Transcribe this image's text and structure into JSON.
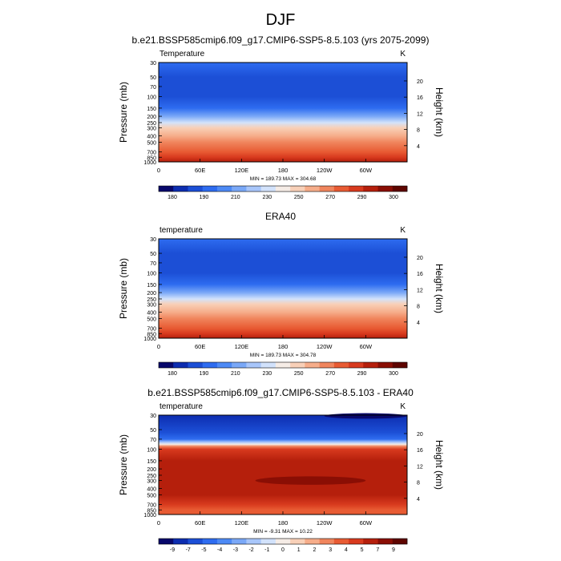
{
  "main_title": "DJF",
  "chart_data": [
    {
      "type": "heatmap",
      "title": "b.e21.BSSP585cmip6.f09_g17.CMIP6-SSP5-8.5.103 (yrs 2075-2099)",
      "field_label": "Temperature",
      "units": "K",
      "xlabel": "",
      "ylabel": "Pressure (mb)",
      "ylabel_right": "Height (km)",
      "x_ticks": [
        "0",
        "60E",
        "120E",
        "180",
        "120W",
        "60W"
      ],
      "x_range": [
        0,
        360
      ],
      "y_ticks": [
        "30",
        "50",
        "70",
        "100",
        "150",
        "200",
        "250",
        "300",
        "400",
        "500",
        "700",
        "850",
        "1000"
      ],
      "y_range": [
        1000,
        30
      ],
      "y_scale": "log",
      "height_ticks": [
        "4",
        "8",
        "12",
        "16",
        "20"
      ],
      "stats": "MIN = 189.73  MAX = 304.68",
      "colorbar_labels": [
        "180",
        "190",
        "210",
        "230",
        "250",
        "270",
        "290",
        "300"
      ],
      "colorbar_colors": [
        "#08086b",
        "#0d2db0",
        "#1c4fd6",
        "#2e6cf0",
        "#4d8af5",
        "#7aa8f7",
        "#a8c6fa",
        "#d2e2fb",
        "#f5ece6",
        "#f8d0b8",
        "#f6ad8a",
        "#f0855d",
        "#e85b33",
        "#d83a1e",
        "#b51f0c",
        "#8a0e04",
        "#5e0500"
      ],
      "profile": [
        {
          "p": 30,
          "color": "#2e6cf0"
        },
        {
          "p": 50,
          "color": "#1c4fd6"
        },
        {
          "p": 70,
          "color": "#1c4fd6"
        },
        {
          "p": 100,
          "color": "#1c4fd6"
        },
        {
          "p": 150,
          "color": "#2e6cf0"
        },
        {
          "p": 200,
          "color": "#7aa8f7"
        },
        {
          "p": 250,
          "color": "#d2e2fb"
        },
        {
          "p": 300,
          "color": "#f8d0b8"
        },
        {
          "p": 400,
          "color": "#f6ad8a"
        },
        {
          "p": 500,
          "color": "#f0855d"
        },
        {
          "p": 700,
          "color": "#e85b33"
        },
        {
          "p": 850,
          "color": "#d83a1e"
        },
        {
          "p": 1000,
          "color": "#b51f0c"
        }
      ],
      "bands": []
    },
    {
      "type": "heatmap",
      "title": "ERA40",
      "field_label": "temperature",
      "units": "K",
      "xlabel": "",
      "ylabel": "Pressure (mb)",
      "ylabel_right": "Height (km)",
      "x_ticks": [
        "0",
        "60E",
        "120E",
        "180",
        "120W",
        "60W"
      ],
      "x_range": [
        0,
        360
      ],
      "y_ticks": [
        "30",
        "50",
        "70",
        "100",
        "150",
        "200",
        "250",
        "300",
        "400",
        "500",
        "700",
        "850",
        "1000"
      ],
      "y_range": [
        1000,
        30
      ],
      "y_scale": "log",
      "height_ticks": [
        "4",
        "8",
        "12",
        "16",
        "20"
      ],
      "stats": "MIN = 189.73  MAX = 304.78",
      "colorbar_labels": [
        "180",
        "190",
        "210",
        "230",
        "250",
        "270",
        "290",
        "300"
      ],
      "colorbar_colors": [
        "#08086b",
        "#0d2db0",
        "#1c4fd6",
        "#2e6cf0",
        "#4d8af5",
        "#7aa8f7",
        "#a8c6fa",
        "#d2e2fb",
        "#f5ece6",
        "#f8d0b8",
        "#f6ad8a",
        "#f0855d",
        "#e85b33",
        "#d83a1e",
        "#b51f0c",
        "#8a0e04",
        "#5e0500"
      ],
      "profile": [
        {
          "p": 30,
          "color": "#2e6cf0"
        },
        {
          "p": 50,
          "color": "#1c4fd6"
        },
        {
          "p": 70,
          "color": "#1c4fd6"
        },
        {
          "p": 100,
          "color": "#1c4fd6"
        },
        {
          "p": 150,
          "color": "#2e6cf0"
        },
        {
          "p": 200,
          "color": "#7aa8f7"
        },
        {
          "p": 250,
          "color": "#d2e2fb"
        },
        {
          "p": 300,
          "color": "#f8d0b8"
        },
        {
          "p": 400,
          "color": "#f6ad8a"
        },
        {
          "p": 500,
          "color": "#f0855d"
        },
        {
          "p": 700,
          "color": "#e85b33"
        },
        {
          "p": 850,
          "color": "#d83a1e"
        },
        {
          "p": 1000,
          "color": "#b51f0c"
        }
      ],
      "bands": []
    },
    {
      "type": "heatmap",
      "title": "b.e21.BSSP585cmip6.f09_g17.CMIP6-SSP5-8.5.103 - ERA40",
      "field_label": "temperature",
      "units": "K",
      "xlabel": "",
      "ylabel": "Pressure (mb)",
      "ylabel_right": "Height (km)",
      "x_ticks": [
        "0",
        "60E",
        "120E",
        "180",
        "120W",
        "60W"
      ],
      "x_range": [
        0,
        360
      ],
      "y_ticks": [
        "30",
        "50",
        "70",
        "100",
        "150",
        "200",
        "250",
        "300",
        "400",
        "500",
        "700",
        "850",
        "1000"
      ],
      "y_range": [
        1000,
        30
      ],
      "y_scale": "log",
      "height_ticks": [
        "4",
        "8",
        "12",
        "16",
        "20"
      ],
      "stats": "MIN = -9.31  MAX = 10.22",
      "colorbar_labels": [
        "-9",
        "-7",
        "-5",
        "-4",
        "-3",
        "-2",
        "-1",
        "0",
        "1",
        "2",
        "3",
        "4",
        "5",
        "7",
        "9"
      ],
      "colorbar_colors": [
        "#08086b",
        "#0d2db0",
        "#1c4fd6",
        "#2e6cf0",
        "#4d8af5",
        "#7aa8f7",
        "#a8c6fa",
        "#d2e2fb",
        "#f5ece6",
        "#f8d0b8",
        "#f6ad8a",
        "#f0855d",
        "#e85b33",
        "#d83a1e",
        "#b51f0c",
        "#8a0e04",
        "#5e0500"
      ],
      "profile": [
        {
          "p": 30,
          "color": "#0d2db0"
        },
        {
          "p": 55,
          "color": "#1c4fd6"
        },
        {
          "p": 70,
          "color": "#2e6cf0"
        },
        {
          "p": 78,
          "color": "#a8c6fa"
        },
        {
          "p": 84,
          "color": "#f5ece6"
        },
        {
          "p": 90,
          "color": "#f0855d"
        },
        {
          "p": 100,
          "color": "#d83a1e"
        },
        {
          "p": 150,
          "color": "#b51f0c"
        },
        {
          "p": 300,
          "color": "#b51f0c"
        },
        {
          "p": 500,
          "color": "#b51f0c"
        },
        {
          "p": 700,
          "color": "#d83a1e"
        },
        {
          "p": 850,
          "color": "#e85b33"
        },
        {
          "p": 1000,
          "color": "#e85b33"
        }
      ],
      "bands": [
        {
          "x0": 140,
          "x1": 300,
          "p0": 260,
          "p1": 350,
          "color": "#8a0e04"
        },
        {
          "x0": 240,
          "x1": 360,
          "p0": 28,
          "p1": 34,
          "color": "#08086b"
        }
      ]
    }
  ]
}
